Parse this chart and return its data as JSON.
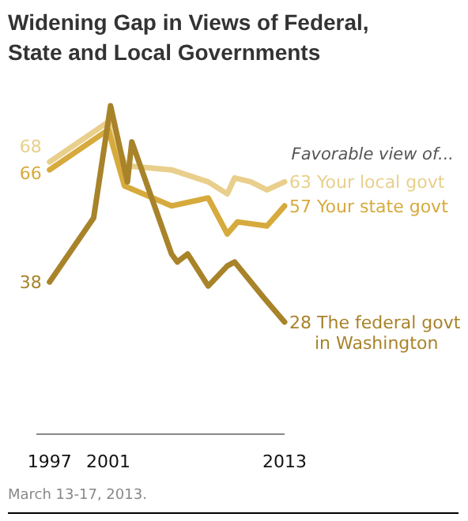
{
  "chart_data": {
    "type": "line",
    "title": "Widening Gap in Views of Federal, State and Local Governments",
    "legend_title": "Favorable view of...",
    "annotations": [
      "March 13-17, 2013."
    ],
    "xlim": [
      1996.1,
      2013
    ],
    "xticks": [
      1997,
      2001,
      2013
    ],
    "marker": "none",
    "line_style": "solid",
    "series": [
      {
        "name": "Your local govt",
        "color": "#e9cf8c",
        "x": [
          1997,
          2001,
          2002.2,
          2005.3,
          2007.8,
          2009.1,
          2009.6,
          2010.7,
          2011.8,
          2013
        ],
        "values": [
          68,
          78,
          67,
          66,
          63,
          60,
          64,
          63,
          61,
          63
        ],
        "value_labels": [
          "68",
          null,
          null,
          null,
          null,
          null,
          null,
          null,
          null,
          "63"
        ]
      },
      {
        "name": "Your state govt",
        "color": "#d6aa3c",
        "x": [
          1997,
          2001,
          2002.1,
          2005.3,
          2007.8,
          2009.1,
          2009.8,
          2011.8,
          2013
        ],
        "values": [
          66,
          76,
          62,
          57,
          59,
          50,
          53,
          52,
          57
        ],
        "value_labels": [
          "66",
          null,
          null,
          null,
          null,
          null,
          null,
          null,
          "57"
        ]
      },
      {
        "name": "The federal govt in Washington",
        "color": "#a8832a",
        "x": [
          1997,
          2000,
          2001.15,
          2002.3,
          2002.6,
          2005.3,
          2005.7,
          2006.4,
          2007.8,
          2009.1,
          2009.6,
          2011.6,
          2013
        ],
        "values": [
          38,
          54,
          82,
          63,
          73,
          45,
          43,
          45,
          37,
          42,
          43,
          34,
          28
        ],
        "value_labels": [
          "38",
          null,
          null,
          null,
          null,
          null,
          null,
          null,
          null,
          null,
          null,
          null,
          "28"
        ]
      }
    ]
  }
}
